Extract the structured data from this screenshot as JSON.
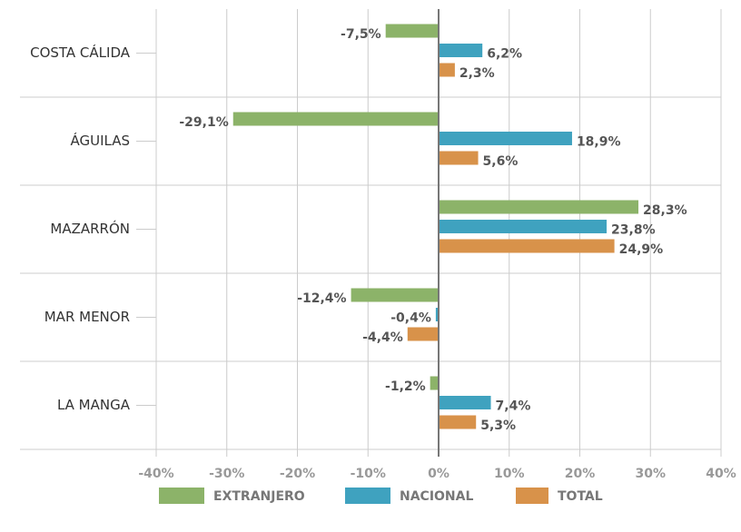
{
  "chart_data": {
    "type": "hbar",
    "categories": [
      "COSTA CÁLIDA",
      "ÁGUILAS",
      "MAZARRÓN",
      "MAR MENOR",
      "LA MANGA"
    ],
    "series": [
      {
        "name": "EXTRANJERO",
        "color": "#8cb369",
        "values": [
          -7.5,
          -29.1,
          28.3,
          -12.4,
          -1.2
        ],
        "value_labels": [
          "-7,5%",
          "-29,1%",
          "28,3%",
          "-12,4%",
          "-1,2%"
        ]
      },
      {
        "name": "NACIONAL",
        "color": "#3fa2bf",
        "values": [
          6.2,
          18.9,
          23.8,
          -0.4,
          7.4
        ],
        "value_labels": [
          "6,2%",
          "18,9%",
          "23,8%",
          "-0,4%",
          "7,4%"
        ]
      },
      {
        "name": "TOTAL",
        "color": "#d8924a",
        "values": [
          2.3,
          5.6,
          24.9,
          -4.4,
          5.3
        ],
        "value_labels": [
          "2,3%",
          "5,6%",
          "24,9%",
          "-4,4%",
          "5,3%"
        ]
      }
    ],
    "xlim": [
      -40,
      40
    ],
    "xticks": [
      {
        "value": -40,
        "label": "-40%"
      },
      {
        "value": -30,
        "label": "-30%"
      },
      {
        "value": -20,
        "label": "-20%"
      },
      {
        "value": -10,
        "label": "-10%"
      },
      {
        "value": 0,
        "label": "0%"
      },
      {
        "value": 10,
        "label": "10%"
      },
      {
        "value": 20,
        "label": "20%"
      },
      {
        "value": 30,
        "label": "30%"
      },
      {
        "value": 40,
        "label": "40%"
      }
    ],
    "grid": true,
    "legend": "bottom"
  }
}
